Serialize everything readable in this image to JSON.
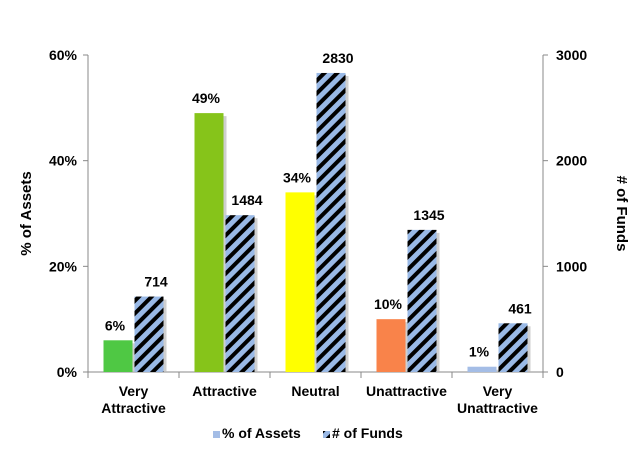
{
  "chart_data": {
    "type": "bar",
    "categories": [
      [
        "Very",
        "Attractive"
      ],
      [
        "Attractive"
      ],
      [
        "Neutral"
      ],
      [
        "Unattractive"
      ],
      [
        "Very",
        "Unattractive"
      ]
    ],
    "series": [
      {
        "name": "% of Assets",
        "axis": "left",
        "values": [
          6,
          49,
          34,
          10,
          1
        ],
        "value_labels": [
          "6%",
          "49%",
          "34%",
          "10%",
          "1%"
        ],
        "colors": [
          "#4fc844",
          "#86c41a",
          "#ffff00",
          "#f9834a",
          "#a4bde6"
        ]
      },
      {
        "name": "# of Funds",
        "axis": "right",
        "values": [
          714,
          1484,
          2830,
          1345,
          461
        ],
        "value_labels": [
          "714",
          "1484",
          "2830",
          "1345",
          "461"
        ],
        "fill": "#99b9e6",
        "hatch": "#000000"
      }
    ],
    "y_left": {
      "label": "% of Assets",
      "range": [
        0,
        60
      ],
      "ticks": [
        "0%",
        "20%",
        "40%",
        "60%"
      ]
    },
    "y_right": {
      "label": "# of Funds",
      "range": [
        0,
        3000
      ],
      "ticks": [
        "0",
        "1000",
        "2000",
        "3000"
      ]
    },
    "grid": false,
    "legend": "bottom"
  }
}
